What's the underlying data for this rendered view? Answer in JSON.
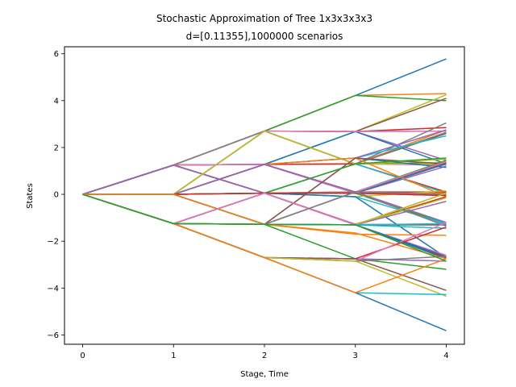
{
  "chart_data": {
    "type": "line",
    "title": "Stochastic Approximation of Tree 1x3x3x3x3",
    "subtitle": "d=[0.11355],1000000 scenarios",
    "xlabel": "Stage, Time",
    "ylabel": "States",
    "xlim": [
      -0.2,
      4.2
    ],
    "ylim": [
      -6.4,
      6.3
    ],
    "xticks": [
      0,
      1,
      2,
      3,
      4
    ],
    "yticks": [
      -6,
      -4,
      -2,
      0,
      2,
      4,
      6
    ],
    "grid": false,
    "legend": "none",
    "palette": [
      "#1f77b4",
      "#ff7f0e",
      "#2ca02c",
      "#d62728",
      "#9467bd",
      "#8c564b",
      "#e377c2",
      "#7f7f7f",
      "#bcbd22",
      "#17becf"
    ],
    "paths": [
      [
        0,
        1.25,
        2.7,
        4.22,
        5.78
      ],
      [
        0,
        1.25,
        2.7,
        4.22,
        4.3
      ],
      [
        0,
        1.25,
        2.7,
        4.22,
        4.0
      ],
      [
        0,
        1.25,
        2.7,
        2.68,
        2.85
      ],
      [
        0,
        1.25,
        2.7,
        2.68,
        1.45
      ],
      [
        0,
        1.25,
        2.7,
        1.3,
        2.6
      ],
      [
        0,
        1.25,
        2.7,
        1.3,
        1.25
      ],
      [
        0,
        1.25,
        2.7,
        1.3,
        0.05
      ],
      [
        0,
        1.25,
        1.28,
        2.68,
        4.25
      ],
      [
        0,
        1.25,
        1.28,
        2.68,
        2.7
      ],
      [
        0,
        1.25,
        1.28,
        2.68,
        1.3
      ],
      [
        0,
        1.25,
        1.28,
        1.3,
        2.75
      ],
      [
        0,
        1.25,
        1.28,
        1.3,
        1.35
      ],
      [
        0,
        1.25,
        1.28,
        1.3,
        0.1
      ],
      [
        0,
        1.25,
        1.28,
        0.05,
        1.2
      ],
      [
        0,
        1.25,
        1.28,
        0.05,
        -0.05
      ],
      [
        0,
        1.25,
        1.28,
        0.05,
        -1.3
      ],
      [
        0,
        1.25,
        0.05,
        1.3,
        2.65
      ],
      [
        0,
        1.25,
        0.05,
        1.3,
        1.3
      ],
      [
        0,
        1.25,
        0.05,
        1.3,
        0.05
      ],
      [
        0,
        1.25,
        0.05,
        0.05,
        1.3
      ],
      [
        0,
        1.25,
        0.05,
        0.05,
        0.05
      ],
      [
        0,
        1.25,
        0.05,
        0.05,
        -1.25
      ],
      [
        0,
        1.25,
        0.05,
        -1.28,
        -0.1
      ],
      [
        0,
        1.25,
        0.05,
        -1.28,
        -1.3
      ],
      [
        0,
        0,
        2.7,
        2.68,
        4.1
      ],
      [
        0,
        0,
        2.7,
        2.68,
        2.7
      ],
      [
        0,
        0,
        2.7,
        1.3,
        3.05
      ],
      [
        0,
        0,
        2.7,
        1.3,
        1.5
      ],
      [
        0,
        0,
        1.28,
        1.55,
        2.5
      ],
      [
        0,
        0,
        1.28,
        1.55,
        1.15
      ],
      [
        0,
        0,
        1.28,
        1.55,
        -0.1
      ],
      [
        0,
        0,
        1.28,
        0.1,
        1.45
      ],
      [
        0,
        0,
        1.28,
        0.1,
        0.1
      ],
      [
        0,
        0,
        1.28,
        0.1,
        -1.2
      ],
      [
        0,
        0,
        0.05,
        0.1,
        1.35
      ],
      [
        0,
        0,
        0.05,
        0.1,
        0
      ],
      [
        0,
        0,
        0.05,
        0.1,
        -1.35
      ],
      [
        0,
        0,
        0.05,
        -0.1,
        0.15
      ],
      [
        0,
        0,
        0.05,
        -0.1,
        -1.25
      ],
      [
        0,
        0,
        0.05,
        -0.1,
        -2.7
      ],
      [
        0,
        0,
        0.05,
        -1.3,
        0.05
      ],
      [
        0,
        0,
        0.05,
        -1.3,
        -1.3
      ],
      [
        0,
        0,
        0.05,
        -1.3,
        -2.7
      ],
      [
        0,
        0,
        -1.28,
        1.55,
        2.75
      ],
      [
        0,
        0,
        -1.28,
        1.55,
        1.3
      ],
      [
        0,
        0,
        -1.28,
        0.1,
        1.4
      ],
      [
        0,
        0,
        -1.28,
        0.1,
        0.0
      ],
      [
        0,
        0,
        -1.28,
        -1.3,
        -0.15
      ],
      [
        0,
        0,
        -1.28,
        -1.3,
        -1.45
      ],
      [
        0,
        0,
        -1.28,
        -1.3,
        -2.75
      ],
      [
        0,
        0,
        -1.28,
        -1.7,
        -1.75
      ],
      [
        0,
        -1.25,
        0.05,
        1.3,
        1.55
      ],
      [
        0,
        -1.25,
        0.05,
        0.05,
        -0.05
      ],
      [
        0,
        -1.25,
        0.05,
        -1.3,
        -0.3
      ],
      [
        0,
        -1.25,
        0.05,
        -1.3,
        -1.3
      ],
      [
        0,
        -1.25,
        0.05,
        -1.3,
        -2.6
      ],
      [
        0,
        -1.25,
        -1.28,
        0.1,
        -1.35
      ],
      [
        0,
        -1.25,
        -1.28,
        -1.3,
        0.05
      ],
      [
        0,
        -1.25,
        -1.28,
        -1.3,
        -1.25
      ],
      [
        0,
        -1.25,
        -1.28,
        -1.3,
        -2.65
      ],
      [
        0,
        -1.25,
        -1.28,
        -1.65,
        -2.75
      ],
      [
        0,
        -1.25,
        -1.28,
        -2.75,
        -3.2
      ],
      [
        0,
        -1.25,
        -2.7,
        -2.75,
        -1.4
      ],
      [
        0,
        -1.25,
        -2.7,
        -2.75,
        -2.85
      ],
      [
        0,
        -1.25,
        -2.7,
        -2.75,
        -4.1
      ],
      [
        0,
        -1.25,
        -2.7,
        -2.85,
        -1.2
      ],
      [
        0,
        -1.25,
        -2.7,
        -2.85,
        -2.65
      ],
      [
        0,
        -1.25,
        -2.7,
        -2.85,
        -4.35
      ],
      [
        0,
        -1.25,
        -2.7,
        -4.2,
        -4.28
      ],
      [
        0,
        -1.25,
        -2.7,
        -4.2,
        -5.82
      ],
      [
        0,
        -1.25,
        -2.7,
        -4.2,
        -2.75
      ],
      [
        0,
        -1.25,
        -1.28,
        -1.3,
        -2.85
      ]
    ]
  }
}
